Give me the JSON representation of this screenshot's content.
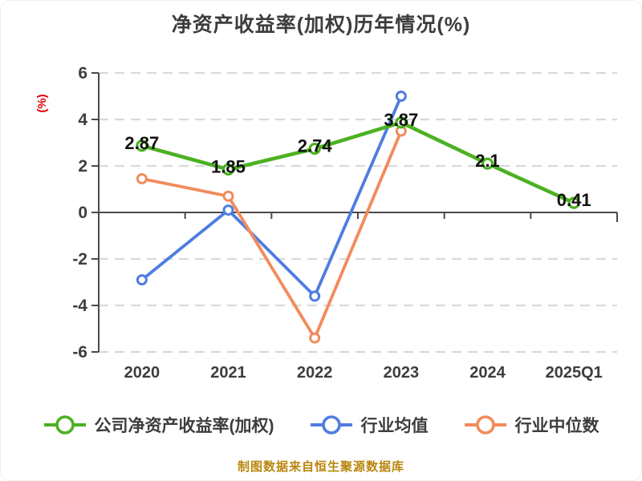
{
  "header": {
    "title": "净资产收益率(加权)历年情况(%)"
  },
  "chart_data": {
    "type": "line",
    "title": "净资产收益率(加权)历年情况(%)",
    "xlabel": "",
    "ylabel": "(%)",
    "ylim": [
      -6,
      6
    ],
    "yticks": [
      6,
      4,
      2,
      0,
      -2,
      -4,
      -6
    ],
    "grid": "horizontal-dashed",
    "legend_position": "bottom",
    "categories": [
      "2020",
      "2021",
      "2022",
      "2023",
      "2024",
      "2025Q1"
    ],
    "series": [
      {
        "name": "公司净资产收益率(加权)",
        "color": "#4CB122",
        "marker_fill": "#FFFFFF",
        "values": [
          2.87,
          1.85,
          2.74,
          3.87,
          2.1,
          0.41
        ],
        "labels": [
          "2.87",
          "1.85",
          "2.74",
          "3.87",
          "2.1",
          "0.41"
        ]
      },
      {
        "name": "行业均值",
        "color": "#4E7DE0",
        "marker_fill": "#FFFFFF",
        "values": [
          -2.9,
          0.1,
          -3.6,
          5.0,
          null,
          null
        ],
        "labels": []
      },
      {
        "name": "行业中位数",
        "color": "#F28B5B",
        "marker_fill": "#FFFFFF",
        "values": [
          1.45,
          0.7,
          -5.4,
          3.5,
          null,
          null
        ],
        "labels": []
      }
    ]
  },
  "footer": {
    "text": "制图数据来自恒生聚源数据库"
  },
  "colors": {
    "title_text": "#3D3D3D",
    "axis": "#4A4A4A",
    "gridline": "#D9D9D9",
    "tick_text": "#3D3D3D",
    "ylabel_red": "#E60000",
    "data_label": "#111111",
    "footer_gold": "#B8860B",
    "background": "#FFFFFF"
  }
}
